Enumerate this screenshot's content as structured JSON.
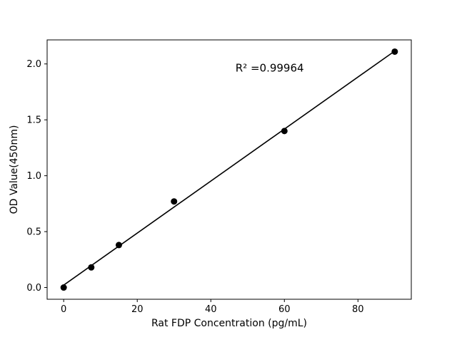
{
  "chart_data": {
    "type": "scatter",
    "title": "",
    "xlabel": "Rat FDP Concentration (pg/mL)",
    "ylabel": "OD Value(450nm)",
    "x": [
      0,
      7.5,
      15,
      30,
      60,
      90
    ],
    "y": [
      0.0,
      0.18,
      0.38,
      0.77,
      1.4,
      2.11
    ],
    "xlim": [
      -4.5,
      94.5
    ],
    "ylim": [
      -0.105,
      2.215
    ],
    "x_tick_values": [
      0,
      20,
      40,
      60,
      80
    ],
    "x_tick_labels": [
      "0",
      "20",
      "40",
      "60",
      "80"
    ],
    "y_tick_values": [
      0.0,
      0.5,
      1.0,
      1.5,
      2.0
    ],
    "y_tick_labels": [
      "0.0",
      "0.5",
      "1.0",
      "1.5",
      "2.0"
    ],
    "annotation": {
      "text": "R² =0.99964",
      "x": 56,
      "y": 1.93
    },
    "fit_line": true,
    "marker_color": "#000000",
    "line_color": "#000000",
    "frame_color": "#000000",
    "background": "#ffffff",
    "grid": false,
    "legend_position": "none"
  }
}
